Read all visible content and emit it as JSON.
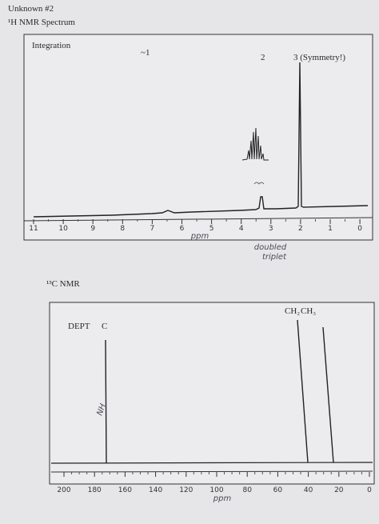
{
  "header": {
    "title": "Unknown #2",
    "subtitle": "¹H NMR Spectrum"
  },
  "h_nmr": {
    "integration_label": "Integration",
    "integrations": [
      "~1",
      "2",
      "3 (Symmetry!)"
    ],
    "axis_ticks": [
      "11",
      "10",
      "9",
      "8",
      "7",
      "6",
      "5",
      "4",
      "3",
      "2",
      "1",
      "0"
    ],
    "axis_label": "ppm",
    "annotation": [
      "doubled",
      "triplet"
    ]
  },
  "c_nmr": {
    "title": "¹³C NMR",
    "dept_label": "DEPT",
    "peak_label_c": "C",
    "peak_label_ch2": "CH₂",
    "peak_label_ch3": "CH₃",
    "annotation": "NH",
    "axis_ticks": [
      "200",
      "180",
      "160",
      "140",
      "120",
      "100",
      "80",
      "60",
      "40",
      "20",
      "0"
    ],
    "axis_label": "ppm"
  }
}
